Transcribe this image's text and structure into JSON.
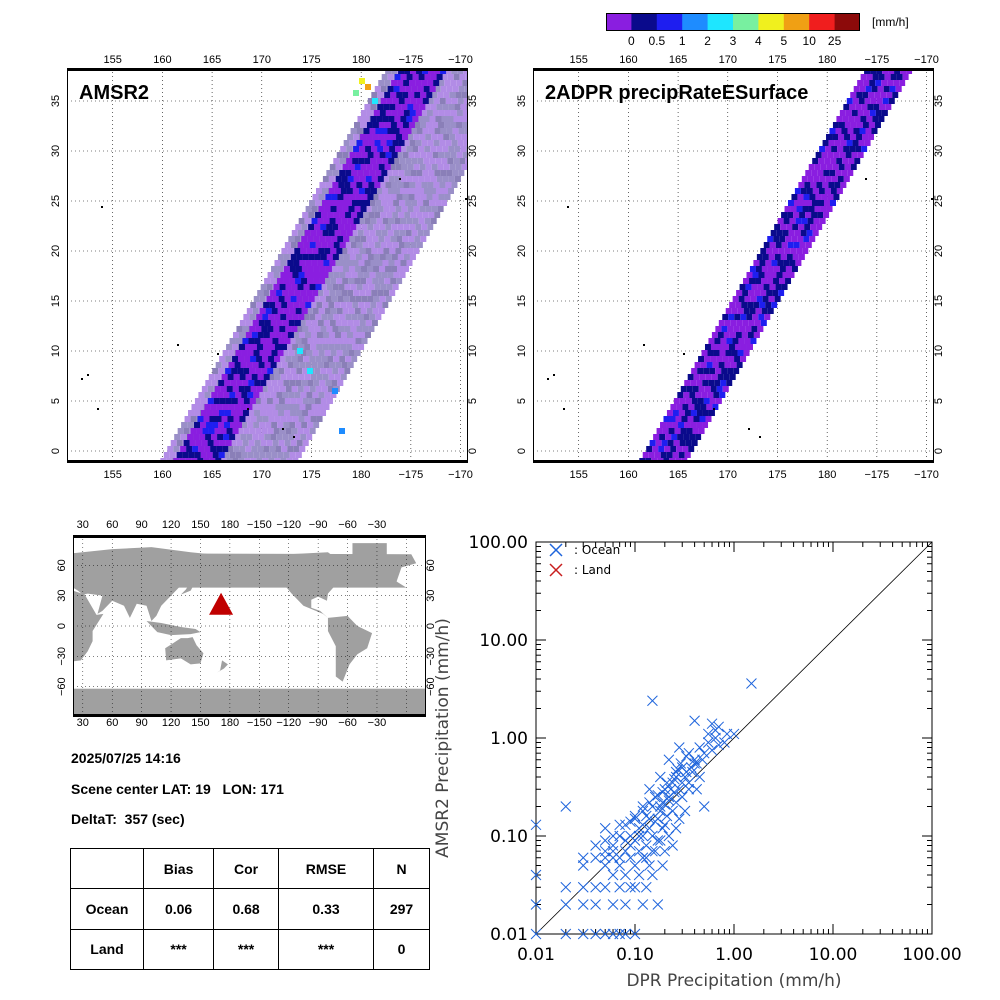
{
  "colorbar": {
    "unit": "[mm/h]",
    "labels": [
      "0",
      "0.5",
      "1",
      "2",
      "3",
      "4",
      "5",
      "10",
      "25"
    ],
    "colors": [
      "#8a1ee0",
      "#0a0a8c",
      "#1e1ef0",
      "#1e8cff",
      "#1ee6ff",
      "#78f0a0",
      "#f0f01e",
      "#f0a014",
      "#f01e1e",
      "#8c0a0a"
    ]
  },
  "map_lon_labels": [
    "155",
    "160",
    "165",
    "170",
    "175",
    "180",
    "−175",
    "−170"
  ],
  "map_lat_labels": [
    "0",
    "5",
    "10",
    "15",
    "20",
    "25",
    "30",
    "35"
  ],
  "amsr2": {
    "title": "AMSR2"
  },
  "dpr": {
    "title": "2ADPR precipRateESurface"
  },
  "world_map": {
    "lon_labels": [
      "30",
      "60",
      "90",
      "120",
      "150",
      "180",
      "−150",
      "−120",
      "−90",
      "−60",
      "−30"
    ],
    "lat_labels": [
      "60",
      "30",
      "0",
      "−30",
      "−60"
    ],
    "marker_color": "#c00000"
  },
  "info": {
    "datetime": "2025/07/25 14:16",
    "scene_center": "Scene center LAT: 19   LON: 171",
    "delta_t": "DeltaT:  357 (sec)"
  },
  "stats_table": {
    "headers": [
      "",
      "Bias",
      "Cor",
      "RMSE",
      "N"
    ],
    "rows": [
      [
        "Ocean",
        "0.06",
        "0.68",
        "0.33",
        "297"
      ],
      [
        "Land",
        "***",
        "***",
        "***",
        "0"
      ]
    ]
  },
  "chart_data": {
    "type": "scatter",
    "xlabel": "DPR Precipitation (mm/h)",
    "ylabel": "AMSR2 Precipitation (mm/h)",
    "x_scale": "log",
    "y_scale": "log",
    "xlim": [
      0.01,
      100
    ],
    "ylim": [
      0.01,
      100
    ],
    "tick_labels": [
      "0.01",
      "0.10",
      "1.00",
      "10.00",
      "100.00"
    ],
    "reference_line": "1:1",
    "legend_position": "top-left",
    "series": [
      {
        "name": ": Ocean",
        "color": "#1e64dc",
        "points": [
          [
            0.01,
            0.13
          ],
          [
            0.01,
            0.04
          ],
          [
            0.01,
            0.02
          ],
          [
            0.01,
            0.01
          ],
          [
            0.02,
            0.2
          ],
          [
            0.02,
            0.03
          ],
          [
            0.02,
            0.01
          ],
          [
            0.02,
            0.02
          ],
          [
            0.03,
            0.06
          ],
          [
            0.03,
            0.05
          ],
          [
            0.03,
            0.02
          ],
          [
            0.03,
            0.01
          ],
          [
            0.03,
            0.03
          ],
          [
            0.04,
            0.06
          ],
          [
            0.04,
            0.03
          ],
          [
            0.04,
            0.02
          ],
          [
            0.04,
            0.01
          ],
          [
            0.05,
            0.07
          ],
          [
            0.05,
            0.05
          ],
          [
            0.05,
            0.03
          ],
          [
            0.05,
            0.01
          ],
          [
            0.05,
            0.12
          ],
          [
            0.06,
            0.08
          ],
          [
            0.06,
            0.06
          ],
          [
            0.06,
            0.04
          ],
          [
            0.06,
            0.02
          ],
          [
            0.06,
            0.01
          ],
          [
            0.07,
            0.1
          ],
          [
            0.07,
            0.05
          ],
          [
            0.07,
            0.03
          ],
          [
            0.07,
            0.01
          ],
          [
            0.08,
            0.13
          ],
          [
            0.08,
            0.07
          ],
          [
            0.08,
            0.04
          ],
          [
            0.08,
            0.02
          ],
          [
            0.08,
            0.01
          ],
          [
            0.09,
            0.1
          ],
          [
            0.09,
            0.06
          ],
          [
            0.09,
            0.03
          ],
          [
            0.1,
            0.15
          ],
          [
            0.1,
            0.09
          ],
          [
            0.1,
            0.05
          ],
          [
            0.1,
            0.03
          ],
          [
            0.1,
            0.01
          ],
          [
            0.11,
            0.12
          ],
          [
            0.11,
            0.07
          ],
          [
            0.11,
            0.04
          ],
          [
            0.12,
            0.2
          ],
          [
            0.12,
            0.1
          ],
          [
            0.12,
            0.06
          ],
          [
            0.12,
            0.02
          ],
          [
            0.13,
            0.16
          ],
          [
            0.13,
            0.08
          ],
          [
            0.13,
            0.03
          ],
          [
            0.14,
            0.3
          ],
          [
            0.14,
            0.12
          ],
          [
            0.14,
            0.05
          ],
          [
            0.15,
            2.4
          ],
          [
            0.15,
            0.2
          ],
          [
            0.15,
            0.1
          ],
          [
            0.15,
            0.04
          ],
          [
            0.16,
            0.25
          ],
          [
            0.16,
            0.07
          ],
          [
            0.17,
            0.15
          ],
          [
            0.17,
            0.02
          ],
          [
            0.18,
            0.4
          ],
          [
            0.18,
            0.18
          ],
          [
            0.18,
            0.09
          ],
          [
            0.19,
            0.22
          ],
          [
            0.19,
            0.05
          ],
          [
            0.2,
            0.3
          ],
          [
            0.2,
            0.13
          ],
          [
            0.2,
            0.07
          ],
          [
            0.22,
            0.6
          ],
          [
            0.22,
            0.25
          ],
          [
            0.22,
            0.1
          ],
          [
            0.24,
            0.35
          ],
          [
            0.24,
            0.18
          ],
          [
            0.24,
            0.08
          ],
          [
            0.26,
            0.45
          ],
          [
            0.26,
            0.22
          ],
          [
            0.26,
            0.12
          ],
          [
            0.28,
            0.8
          ],
          [
            0.28,
            0.3
          ],
          [
            0.28,
            0.15
          ],
          [
            0.3,
            0.5
          ],
          [
            0.3,
            0.25
          ],
          [
            0.32,
            0.4
          ],
          [
            0.32,
            0.18
          ],
          [
            0.35,
            0.7
          ],
          [
            0.35,
            0.35
          ],
          [
            0.38,
            0.45
          ],
          [
            0.4,
            1.5
          ],
          [
            0.4,
            0.55
          ],
          [
            0.42,
            0.3
          ],
          [
            0.45,
            0.8
          ],
          [
            0.48,
            0.6
          ],
          [
            0.5,
            0.2
          ],
          [
            0.55,
            1.1
          ],
          [
            0.6,
            1.4
          ],
          [
            0.65,
            1.2
          ],
          [
            0.7,
            1.3
          ],
          [
            0.8,
            0.9
          ],
          [
            0.45,
            0.4
          ],
          [
            0.35,
            0.3
          ],
          [
            0.3,
            0.35
          ],
          [
            0.25,
            0.28
          ],
          [
            0.22,
            0.23
          ],
          [
            0.2,
            0.21
          ],
          [
            0.18,
            0.2
          ],
          [
            0.16,
            0.14
          ],
          [
            0.14,
            0.15
          ],
          [
            0.12,
            0.13
          ],
          [
            0.11,
            0.1
          ],
          [
            0.09,
            0.08
          ],
          [
            0.08,
            0.09
          ],
          [
            0.07,
            0.06
          ],
          [
            0.06,
            0.07
          ],
          [
            0.05,
            0.06
          ],
          [
            0.13,
            0.06
          ],
          [
            0.15,
            0.07
          ],
          [
            0.17,
            0.09
          ],
          [
            0.19,
            0.12
          ],
          [
            0.21,
            0.16
          ],
          [
            0.23,
            0.3
          ],
          [
            0.26,
            0.4
          ],
          [
            0.33,
            0.45
          ],
          [
            0.37,
            0.5
          ],
          [
            0.42,
            0.55
          ],
          [
            0.5,
            0.7
          ],
          [
            0.55,
            0.9
          ],
          [
            0.65,
            1.0
          ],
          [
            0.85,
            1.1
          ],
          [
            1.0,
            1.1
          ],
          [
            1.5,
            3.6
          ],
          [
            0.7,
            0.85
          ],
          [
            0.6,
            0.75
          ],
          [
            0.4,
            0.6
          ],
          [
            0.33,
            0.65
          ],
          [
            0.29,
            0.55
          ],
          [
            0.27,
            0.48
          ],
          [
            0.25,
            0.38
          ],
          [
            0.21,
            0.35
          ],
          [
            0.19,
            0.28
          ],
          [
            0.17,
            0.26
          ],
          [
            0.14,
            0.22
          ],
          [
            0.12,
            0.18
          ],
          [
            0.1,
            0.16
          ],
          [
            0.09,
            0.14
          ],
          [
            0.07,
            0.13
          ],
          [
            0.06,
            0.1
          ],
          [
            0.05,
            0.09
          ],
          [
            0.04,
            0.08
          ]
        ]
      },
      {
        "name": ": Land",
        "color": "#c81e1e",
        "points": []
      }
    ]
  }
}
